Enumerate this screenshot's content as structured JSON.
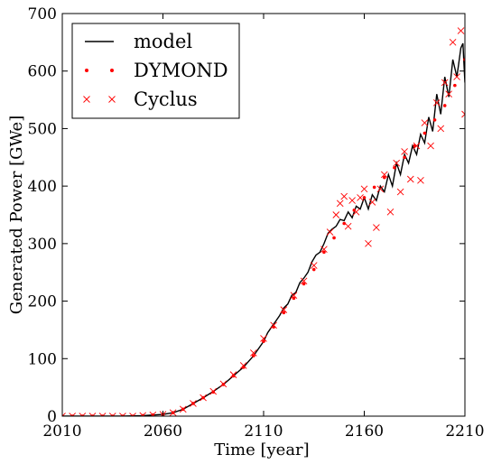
{
  "chart_data": {
    "type": "line",
    "title": "",
    "xlabel": "Time [year]",
    "ylabel": "Generated Power [GWe]",
    "xlim": [
      2010,
      2210
    ],
    "ylim": [
      0,
      700
    ],
    "xticks": [
      2010,
      2060,
      2110,
      2160,
      2210
    ],
    "yticks": [
      0,
      100,
      200,
      300,
      400,
      500,
      600,
      700
    ],
    "grid": false,
    "legend": {
      "placement": "top-left"
    },
    "series": [
      {
        "name": "model",
        "style": "line",
        "color": "#000000",
        "x": [
          2010,
          2040,
          2050,
          2060,
          2065,
          2070,
          2075,
          2080,
          2085,
          2090,
          2095,
          2100,
          2105,
          2110,
          2112,
          2114,
          2116,
          2118,
          2120,
          2122,
          2124,
          2126,
          2128,
          2130,
          2132,
          2134,
          2136,
          2138,
          2140,
          2142,
          2144,
          2146,
          2148,
          2150,
          2152,
          2154,
          2156,
          2158,
          2160,
          2162,
          2164,
          2166,
          2168,
          2170,
          2172,
          2174,
          2176,
          2178,
          2180,
          2182,
          2184,
          2186,
          2188,
          2190,
          2192,
          2194,
          2196,
          2198,
          2200,
          2202,
          2204,
          2206,
          2208,
          2209,
          2210
        ],
        "y": [
          0,
          0,
          1,
          3,
          6,
          12,
          22,
          32,
          43,
          55,
          70,
          85,
          105,
          130,
          145,
          155,
          165,
          175,
          188,
          195,
          210,
          215,
          232,
          240,
          250,
          268,
          280,
          285,
          300,
          318,
          325,
          330,
          342,
          340,
          355,
          345,
          365,
          360,
          380,
          360,
          385,
          375,
          400,
          390,
          420,
          400,
          440,
          420,
          455,
          440,
          470,
          455,
          490,
          475,
          520,
          495,
          560,
          525,
          590,
          555,
          620,
          590,
          640,
          648,
          580
        ]
      },
      {
        "name": "DYMOND",
        "style": "dots",
        "color": "#ff0000",
        "x": [
          2010,
          2015,
          2020,
          2025,
          2030,
          2035,
          2040,
          2045,
          2050,
          2055,
          2060,
          2065,
          2070,
          2075,
          2080,
          2085,
          2090,
          2095,
          2100,
          2105,
          2110,
          2115,
          2120,
          2125,
          2130,
          2135,
          2140,
          2145,
          2150,
          2155,
          2160,
          2165,
          2170,
          2175,
          2180,
          2185,
          2190,
          2195,
          2200,
          2205,
          2210
        ],
        "y": [
          0,
          0,
          0,
          0,
          0,
          0,
          0,
          0,
          1,
          2,
          3,
          6,
          12,
          22,
          32,
          42,
          55,
          70,
          85,
          105,
          130,
          155,
          180,
          205,
          230,
          255,
          285,
          310,
          335,
          358,
          380,
          398,
          415,
          432,
          450,
          470,
          492,
          515,
          540,
          575,
          620
        ]
      },
      {
        "name": "Cyclus",
        "style": "x",
        "color": "#ff0000",
        "x": [
          2010,
          2015,
          2020,
          2025,
          2030,
          2035,
          2040,
          2045,
          2050,
          2055,
          2060,
          2065,
          2070,
          2075,
          2080,
          2085,
          2090,
          2095,
          2100,
          2105,
          2110,
          2115,
          2120,
          2125,
          2130,
          2135,
          2140,
          2143,
          2146,
          2148,
          2150,
          2152,
          2154,
          2156,
          2158,
          2160,
          2162,
          2164,
          2166,
          2168,
          2170,
          2173,
          2176,
          2178,
          2180,
          2183,
          2186,
          2188,
          2190,
          2193,
          2196,
          2198,
          2200,
          2202,
          2204,
          2206,
          2208,
          2210
        ],
        "y": [
          0,
          0,
          0,
          0,
          0,
          0,
          0,
          0,
          1,
          2,
          3,
          6,
          12,
          22,
          32,
          43,
          56,
          72,
          88,
          110,
          135,
          158,
          185,
          210,
          235,
          262,
          290,
          320,
          350,
          370,
          382,
          330,
          375,
          355,
          380,
          395,
          300,
          372,
          328,
          395,
          420,
          355,
          440,
          390,
          460,
          412,
          470,
          410,
          510,
          470,
          545,
          500,
          580,
          560,
          650,
          590,
          670,
          525
        ]
      }
    ]
  }
}
